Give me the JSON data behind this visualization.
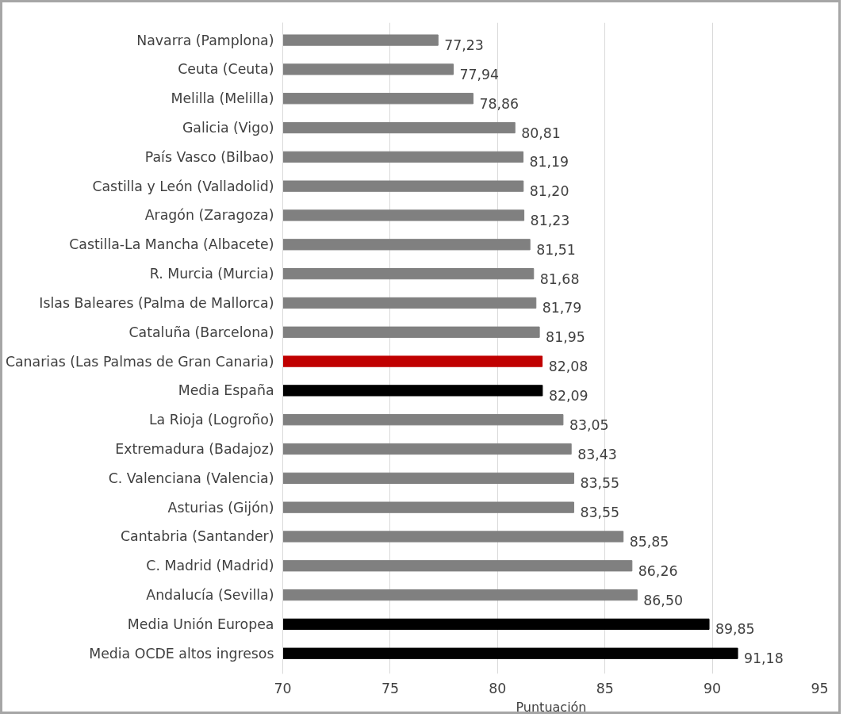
{
  "chart_data": {
    "type": "bar",
    "orientation": "horizontal",
    "xlabel": "Puntuación",
    "categories": [
      "Navarra (Pamplona)",
      "Ceuta (Ceuta)",
      "Melilla (Melilla)",
      "Galicia (Vigo)",
      "País Vasco (Bilbao)",
      "Castilla y León (Valladolid)",
      "Aragón (Zaragoza)",
      "Castilla-La Mancha (Albacete)",
      "R. Murcia (Murcia)",
      "Islas Baleares (Palma de Mallorca)",
      "Cataluña (Barcelona)",
      "Canarias (Las Palmas de Gran Canaria)",
      "Media España",
      "La Rioja (Logroño)",
      "Extremadura (Badajoz)",
      "C. Valenciana (Valencia)",
      "Asturias (Gijón)",
      "Cantabria (Santander)",
      "C. Madrid (Madrid)",
      "Andalucía (Sevilla)",
      "Media Unión Europea",
      "Media OCDE altos ingresos"
    ],
    "values": [
      77.23,
      77.94,
      78.86,
      80.81,
      81.19,
      81.2,
      81.23,
      81.51,
      81.68,
      81.79,
      81.95,
      82.08,
      82.09,
      83.05,
      83.43,
      83.55,
      83.55,
      85.85,
      86.26,
      86.5,
      89.85,
      91.18
    ],
    "value_labels": [
      "77,23",
      "77,94",
      "78,86",
      "80,81",
      "81,19",
      "81,20",
      "81,23",
      "81,51",
      "81,68",
      "81,79",
      "81,95",
      "82,08",
      "82,09",
      "83,05",
      "83,43",
      "83,55",
      "83,55",
      "85,85",
      "86,26",
      "86,50",
      "89,85",
      "91,18"
    ],
    "colors": [
      "#808080",
      "#808080",
      "#808080",
      "#808080",
      "#808080",
      "#808080",
      "#808080",
      "#808080",
      "#808080",
      "#808080",
      "#808080",
      "#c00000",
      "#000000",
      "#808080",
      "#808080",
      "#808080",
      "#808080",
      "#808080",
      "#808080",
      "#808080",
      "#000000",
      "#000000"
    ],
    "xlim": [
      70,
      95
    ],
    "xticks": [
      70,
      75,
      80,
      85,
      90,
      95
    ],
    "grid": "x"
  }
}
